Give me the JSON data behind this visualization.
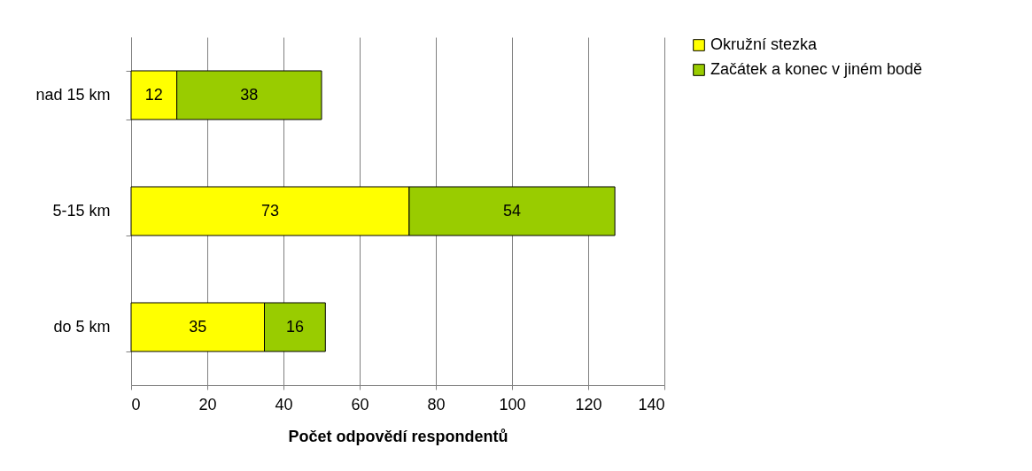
{
  "chart_data": {
    "type": "bar",
    "orientation": "horizontal",
    "stacked": true,
    "categories": [
      "nad 15 km",
      "5-15 km",
      "do 5 km"
    ],
    "series": [
      {
        "name": "Okružní stezka",
        "color": "#ffff00",
        "values": [
          12,
          73,
          35
        ]
      },
      {
        "name": "Začátek a konec v jiném bodě",
        "color": "#99cc00",
        "values": [
          38,
          54,
          16
        ]
      }
    ],
    "xlim": [
      0,
      140
    ],
    "xticks": [
      0,
      20,
      40,
      60,
      80,
      100,
      120,
      140
    ],
    "xlabel": "Počet odpovědí respondentů",
    "grid": "x",
    "legend": "right",
    "data_labels": true
  }
}
